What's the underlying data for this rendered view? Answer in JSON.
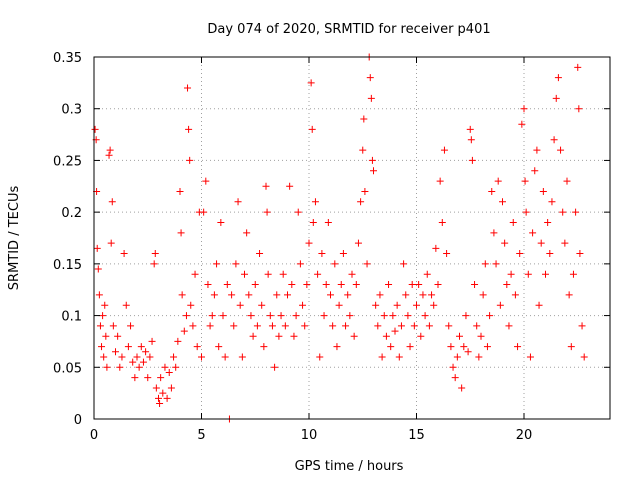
{
  "chart_data": {
    "type": "scatter",
    "title": "Day 074 of 2020, SRMTID for receiver p401",
    "xlabel": "GPS time / hours",
    "ylabel": "SRMTID / TECUs",
    "xlim": [
      0,
      24
    ],
    "ylim": [
      0,
      0.35
    ],
    "xticks": [
      0,
      5,
      10,
      15,
      20
    ],
    "xtick_labels": [
      "0",
      "5",
      "10",
      "15",
      "20"
    ],
    "yticks": [
      0,
      0.05,
      0.1,
      0.15,
      0.2,
      0.25,
      0.3,
      0.35
    ],
    "ytick_labels": [
      "0",
      "0.05",
      "0.1",
      "0.15",
      "0.2",
      "0.25",
      "0.3",
      "0.35"
    ],
    "grid": true,
    "marker": "plus",
    "color": "#ff0000",
    "series": [
      {
        "name": "SRMTID",
        "points": [
          [
            0.05,
            0.28
          ],
          [
            0.1,
            0.27
          ],
          [
            0.12,
            0.22
          ],
          [
            0.15,
            0.165
          ],
          [
            0.2,
            0.145
          ],
          [
            0.25,
            0.12
          ],
          [
            0.3,
            0.09
          ],
          [
            0.35,
            0.07
          ],
          [
            0.4,
            0.1
          ],
          [
            0.45,
            0.06
          ],
          [
            0.5,
            0.11
          ],
          [
            0.55,
            0.08
          ],
          [
            0.6,
            0.05
          ],
          [
            0.7,
            0.255
          ],
          [
            0.75,
            0.26
          ],
          [
            0.8,
            0.17
          ],
          [
            0.85,
            0.21
          ],
          [
            0.9,
            0.09
          ],
          [
            1.0,
            0.065
          ],
          [
            1.1,
            0.08
          ],
          [
            1.2,
            0.05
          ],
          [
            1.3,
            0.06
          ],
          [
            1.4,
            0.16
          ],
          [
            1.5,
            0.11
          ],
          [
            1.6,
            0.07
          ],
          [
            1.7,
            0.09
          ],
          [
            1.8,
            0.055
          ],
          [
            1.9,
            0.04
          ],
          [
            2.0,
            0.06
          ],
          [
            2.1,
            0.05
          ],
          [
            2.2,
            0.07
          ],
          [
            2.3,
            0.055
          ],
          [
            2.4,
            0.065
          ],
          [
            2.5,
            0.04
          ],
          [
            2.6,
            0.06
          ],
          [
            2.7,
            0.075
          ],
          [
            2.8,
            0.15
          ],
          [
            2.85,
            0.16
          ],
          [
            2.9,
            0.03
          ],
          [
            3.0,
            0.02
          ],
          [
            3.05,
            0.015
          ],
          [
            3.1,
            0.04
          ],
          [
            3.2,
            0.025
          ],
          [
            3.3,
            0.05
          ],
          [
            3.4,
            0.02
          ],
          [
            3.5,
            0.045
          ],
          [
            3.6,
            0.03
          ],
          [
            3.7,
            0.06
          ],
          [
            3.8,
            0.05
          ],
          [
            3.9,
            0.075
          ],
          [
            4.0,
            0.22
          ],
          [
            4.05,
            0.18
          ],
          [
            4.1,
            0.12
          ],
          [
            4.2,
            0.085
          ],
          [
            4.3,
            0.1
          ],
          [
            4.35,
            0.32
          ],
          [
            4.4,
            0.28
          ],
          [
            4.45,
            0.25
          ],
          [
            4.5,
            0.11
          ],
          [
            4.6,
            0.09
          ],
          [
            4.7,
            0.14
          ],
          [
            4.8,
            0.07
          ],
          [
            4.9,
            0.2
          ],
          [
            5.0,
            0.06
          ],
          [
            5.1,
            0.2
          ],
          [
            5.2,
            0.23
          ],
          [
            5.3,
            0.13
          ],
          [
            5.4,
            0.09
          ],
          [
            5.5,
            0.1
          ],
          [
            5.6,
            0.12
          ],
          [
            5.7,
            0.15
          ],
          [
            5.8,
            0.07
          ],
          [
            5.9,
            0.19
          ],
          [
            6.0,
            0.1
          ],
          [
            6.1,
            0.06
          ],
          [
            6.2,
            0.13
          ],
          [
            6.3,
            0.0
          ],
          [
            6.4,
            0.12
          ],
          [
            6.5,
            0.09
          ],
          [
            6.6,
            0.15
          ],
          [
            6.7,
            0.21
          ],
          [
            6.8,
            0.11
          ],
          [
            6.9,
            0.06
          ],
          [
            7.0,
            0.14
          ],
          [
            7.1,
            0.18
          ],
          [
            7.2,
            0.12
          ],
          [
            7.3,
            0.1
          ],
          [
            7.4,
            0.08
          ],
          [
            7.5,
            0.13
          ],
          [
            7.6,
            0.09
          ],
          [
            7.7,
            0.16
          ],
          [
            7.8,
            0.11
          ],
          [
            7.9,
            0.07
          ],
          [
            8.0,
            0.225
          ],
          [
            8.05,
            0.2
          ],
          [
            8.1,
            0.14
          ],
          [
            8.2,
            0.1
          ],
          [
            8.3,
            0.09
          ],
          [
            8.4,
            0.05
          ],
          [
            8.5,
            0.12
          ],
          [
            8.6,
            0.08
          ],
          [
            8.7,
            0.1
          ],
          [
            8.8,
            0.14
          ],
          [
            8.9,
            0.09
          ],
          [
            9.0,
            0.12
          ],
          [
            9.1,
            0.225
          ],
          [
            9.2,
            0.13
          ],
          [
            9.3,
            0.08
          ],
          [
            9.4,
            0.1
          ],
          [
            9.5,
            0.2
          ],
          [
            9.6,
            0.15
          ],
          [
            9.7,
            0.11
          ],
          [
            9.8,
            0.09
          ],
          [
            9.9,
            0.13
          ],
          [
            10.0,
            0.17
          ],
          [
            10.1,
            0.325
          ],
          [
            10.15,
            0.28
          ],
          [
            10.2,
            0.19
          ],
          [
            10.3,
            0.21
          ],
          [
            10.4,
            0.14
          ],
          [
            10.5,
            0.06
          ],
          [
            10.6,
            0.16
          ],
          [
            10.7,
            0.1
          ],
          [
            10.8,
            0.13
          ],
          [
            10.9,
            0.19
          ],
          [
            11.0,
            0.12
          ],
          [
            11.1,
            0.09
          ],
          [
            11.2,
            0.15
          ],
          [
            11.3,
            0.07
          ],
          [
            11.4,
            0.11
          ],
          [
            11.5,
            0.13
          ],
          [
            11.6,
            0.16
          ],
          [
            11.7,
            0.09
          ],
          [
            11.8,
            0.12
          ],
          [
            11.9,
            0.1
          ],
          [
            12.0,
            0.14
          ],
          [
            12.1,
            0.08
          ],
          [
            12.2,
            0.13
          ],
          [
            12.3,
            0.17
          ],
          [
            12.4,
            0.21
          ],
          [
            12.5,
            0.26
          ],
          [
            12.55,
            0.29
          ],
          [
            12.6,
            0.22
          ],
          [
            12.7,
            0.15
          ],
          [
            12.8,
            0.35
          ],
          [
            12.85,
            0.33
          ],
          [
            12.9,
            0.31
          ],
          [
            12.95,
            0.25
          ],
          [
            13.0,
            0.24
          ],
          [
            13.1,
            0.11
          ],
          [
            13.2,
            0.09
          ],
          [
            13.3,
            0.12
          ],
          [
            13.4,
            0.06
          ],
          [
            13.5,
            0.1
          ],
          [
            13.6,
            0.08
          ],
          [
            13.7,
            0.13
          ],
          [
            13.8,
            0.07
          ],
          [
            13.9,
            0.1
          ],
          [
            14.0,
            0.085
          ],
          [
            14.1,
            0.11
          ],
          [
            14.2,
            0.06
          ],
          [
            14.3,
            0.09
          ],
          [
            14.4,
            0.15
          ],
          [
            14.5,
            0.12
          ],
          [
            14.6,
            0.1
          ],
          [
            14.7,
            0.07
          ],
          [
            14.8,
            0.13
          ],
          [
            14.9,
            0.09
          ],
          [
            15.0,
            0.11
          ],
          [
            15.1,
            0.13
          ],
          [
            15.2,
            0.08
          ],
          [
            15.3,
            0.12
          ],
          [
            15.4,
            0.1
          ],
          [
            15.5,
            0.14
          ],
          [
            15.6,
            0.09
          ],
          [
            15.7,
            0.12
          ],
          [
            15.8,
            0.11
          ],
          [
            15.9,
            0.165
          ],
          [
            16.0,
            0.13
          ],
          [
            16.1,
            0.23
          ],
          [
            16.2,
            0.19
          ],
          [
            16.3,
            0.26
          ],
          [
            16.4,
            0.16
          ],
          [
            16.5,
            0.09
          ],
          [
            16.6,
            0.07
          ],
          [
            16.7,
            0.05
          ],
          [
            16.8,
            0.04
          ],
          [
            16.9,
            0.06
          ],
          [
            17.0,
            0.08
          ],
          [
            17.1,
            0.03
          ],
          [
            17.2,
            0.07
          ],
          [
            17.3,
            0.1
          ],
          [
            17.4,
            0.065
          ],
          [
            17.5,
            0.28
          ],
          [
            17.55,
            0.27
          ],
          [
            17.6,
            0.25
          ],
          [
            17.7,
            0.13
          ],
          [
            17.8,
            0.09
          ],
          [
            17.9,
            0.06
          ],
          [
            18.0,
            0.08
          ],
          [
            18.1,
            0.12
          ],
          [
            18.2,
            0.15
          ],
          [
            18.3,
            0.07
          ],
          [
            18.4,
            0.1
          ],
          [
            18.5,
            0.22
          ],
          [
            18.6,
            0.18
          ],
          [
            18.7,
            0.15
          ],
          [
            18.8,
            0.23
          ],
          [
            18.9,
            0.11
          ],
          [
            19.0,
            0.21
          ],
          [
            19.1,
            0.17
          ],
          [
            19.2,
            0.13
          ],
          [
            19.3,
            0.09
          ],
          [
            19.4,
            0.14
          ],
          [
            19.5,
            0.19
          ],
          [
            19.6,
            0.12
          ],
          [
            19.7,
            0.07
          ],
          [
            19.8,
            0.16
          ],
          [
            19.9,
            0.285
          ],
          [
            20.0,
            0.3
          ],
          [
            20.05,
            0.23
          ],
          [
            20.1,
            0.2
          ],
          [
            20.2,
            0.14
          ],
          [
            20.3,
            0.06
          ],
          [
            20.4,
            0.18
          ],
          [
            20.5,
            0.24
          ],
          [
            20.6,
            0.26
          ],
          [
            20.7,
            0.11
          ],
          [
            20.8,
            0.17
          ],
          [
            20.9,
            0.22
          ],
          [
            21.0,
            0.14
          ],
          [
            21.1,
            0.19
          ],
          [
            21.2,
            0.16
          ],
          [
            21.3,
            0.21
          ],
          [
            21.4,
            0.27
          ],
          [
            21.5,
            0.31
          ],
          [
            21.6,
            0.33
          ],
          [
            21.7,
            0.26
          ],
          [
            21.8,
            0.2
          ],
          [
            21.9,
            0.17
          ],
          [
            22.0,
            0.23
          ],
          [
            22.1,
            0.12
          ],
          [
            22.2,
            0.07
          ],
          [
            22.3,
            0.14
          ],
          [
            22.4,
            0.2
          ],
          [
            22.5,
            0.34
          ],
          [
            22.55,
            0.3
          ],
          [
            22.6,
            0.16
          ],
          [
            22.7,
            0.09
          ],
          [
            22.8,
            0.06
          ]
        ]
      }
    ]
  }
}
